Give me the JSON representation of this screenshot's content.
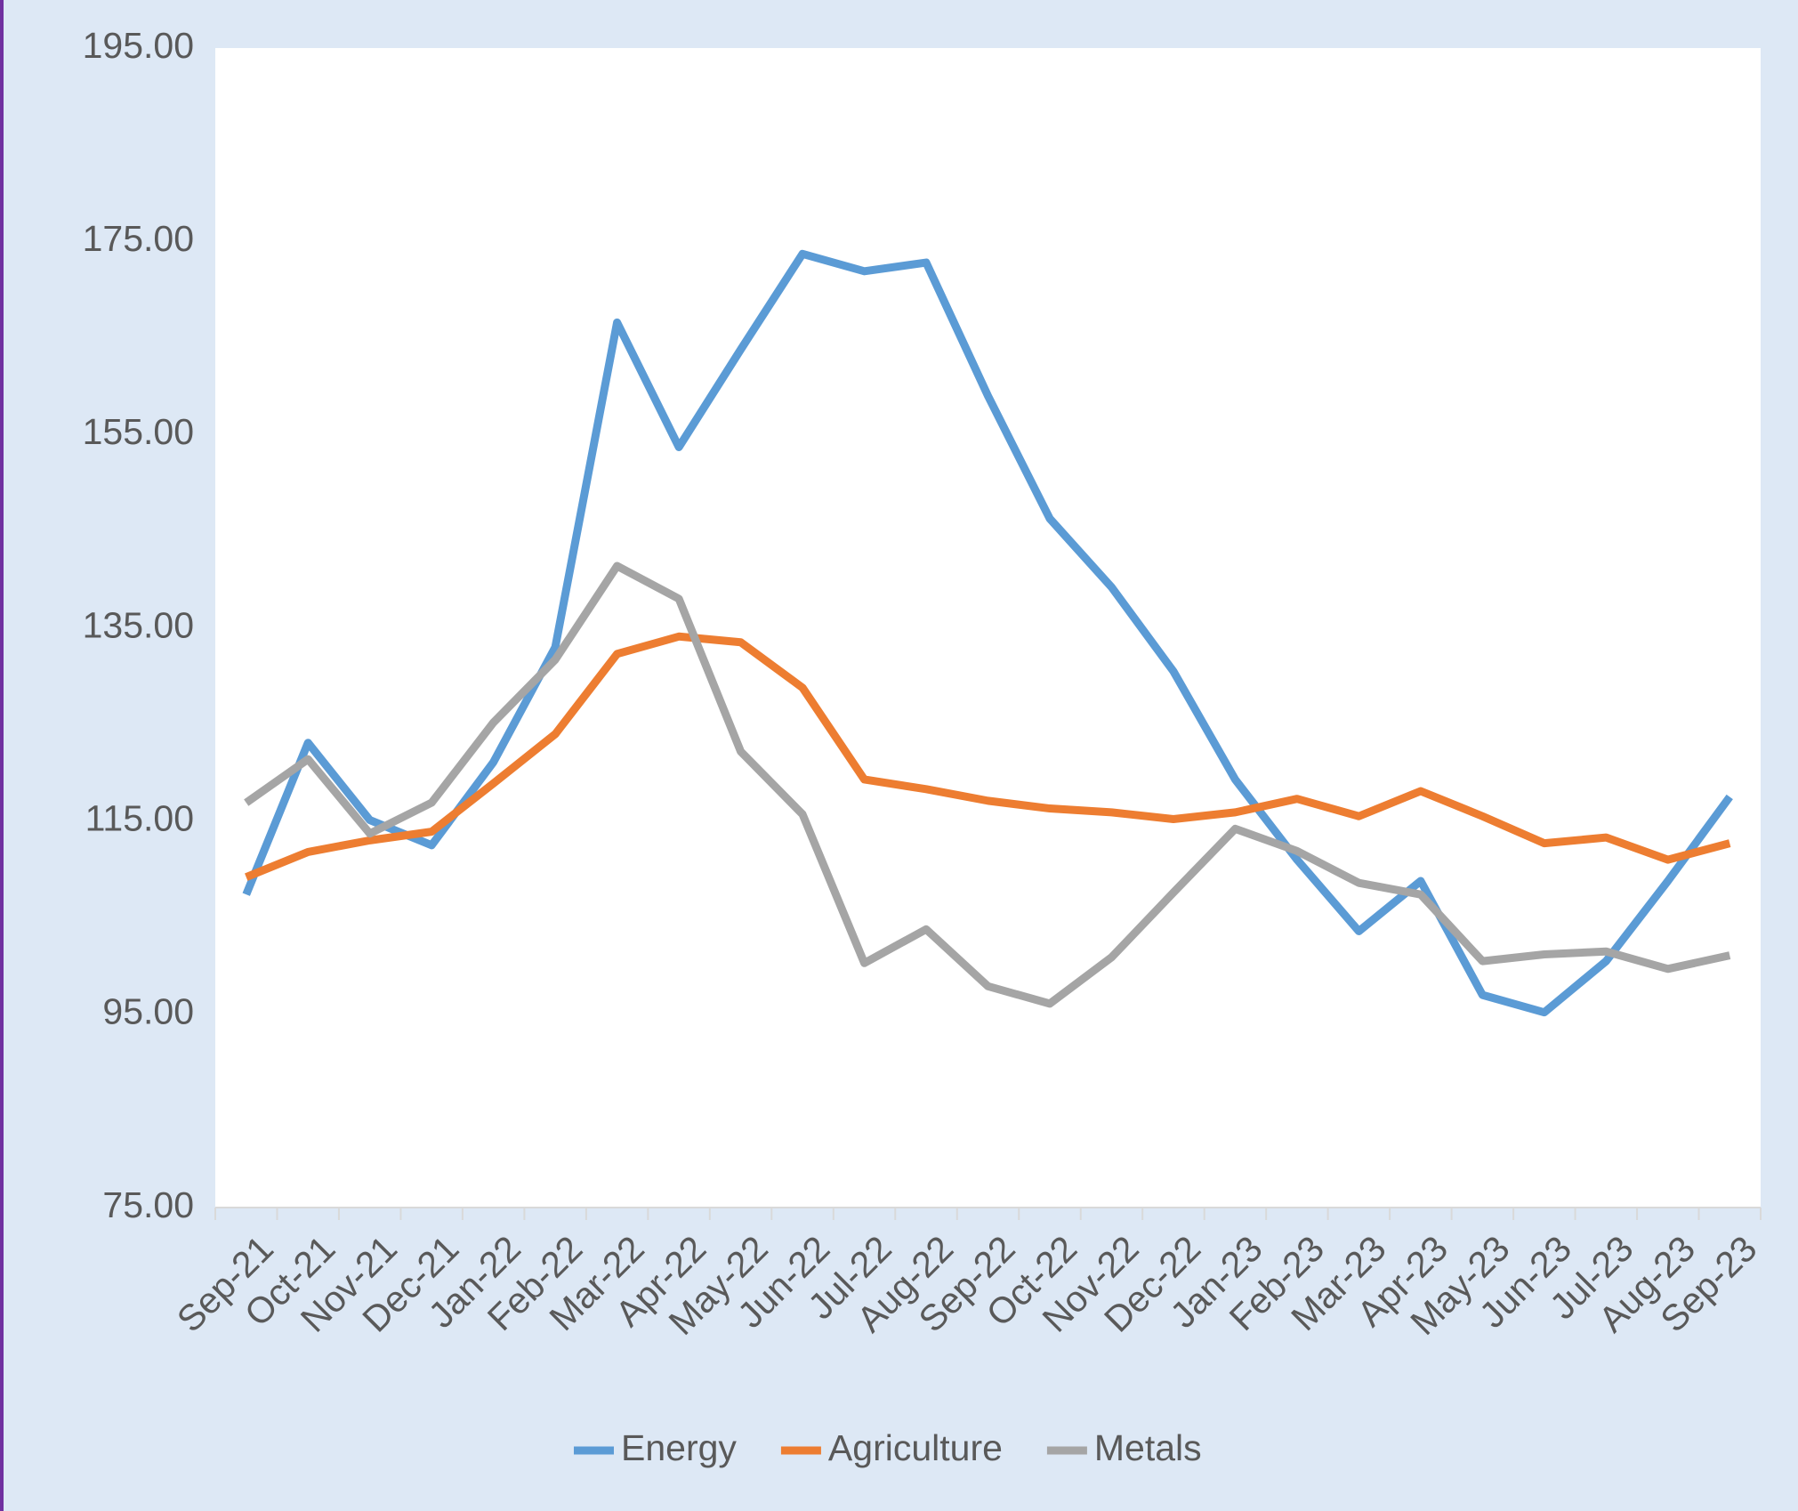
{
  "chart_data": {
    "type": "line",
    "categories": [
      "Sep-21",
      "Oct-21",
      "Nov-21",
      "Dec-21",
      "Jan-22",
      "Feb-22",
      "Mar-22",
      "Apr-22",
      "May-22",
      "Jun-22",
      "Jul-22",
      "Aug-22",
      "Sep-22",
      "Oct-22",
      "Nov-22",
      "Dec-22",
      "Jan-23",
      "Feb-23",
      "Mar-23",
      "Apr-23",
      "May-23",
      "Jun-23",
      "Jul-23",
      "Aug-23",
      "Sep-23"
    ],
    "series": [
      {
        "name": "Energy",
        "color": "#5b9bd5",
        "values": [
          107.4,
          123.1,
          115.1,
          112.5,
          121.1,
          133,
          166.6,
          153.7,
          163.8,
          173.7,
          171.9,
          172.8,
          159,
          146.3,
          139.2,
          130.5,
          119.3,
          111,
          103.6,
          108.8,
          97,
          95.2,
          100.5,
          108.8,
          117.5
        ]
      },
      {
        "name": "Agriculture",
        "color": "#ed7d31",
        "values": [
          109.2,
          111.8,
          113,
          113.9,
          118.9,
          124,
          132.3,
          134.1,
          133.5,
          128.8,
          119.3,
          118.3,
          117.1,
          116.3,
          115.9,
          115.2,
          115.9,
          117.3,
          115.5,
          118.1,
          115.5,
          112.7,
          113.3,
          111,
          112.7
        ]
      },
      {
        "name": "Metals",
        "color": "#a5a5a5",
        "values": [
          116.9,
          121.4,
          113.7,
          116.9,
          125.2,
          131.7,
          141.4,
          138,
          122.2,
          115.7,
          100.3,
          103.8,
          97.9,
          96.1,
          100.9,
          107.6,
          114.2,
          111.9,
          108.6,
          107.4,
          100.5,
          101.2,
          101.5,
          99.7,
          101.1
        ]
      }
    ],
    "ylim": [
      75,
      195
    ],
    "yticks": [
      {
        "value": 75,
        "label": "75.00"
      },
      {
        "value": 95,
        "label": "95.00"
      },
      {
        "value": 115,
        "label": "115.00"
      },
      {
        "value": 135,
        "label": "135.00"
      },
      {
        "value": 155,
        "label": "155.00"
      },
      {
        "value": 175,
        "label": "175.00"
      },
      {
        "value": 195,
        "label": "195.00"
      }
    ],
    "legend": "bottom"
  }
}
